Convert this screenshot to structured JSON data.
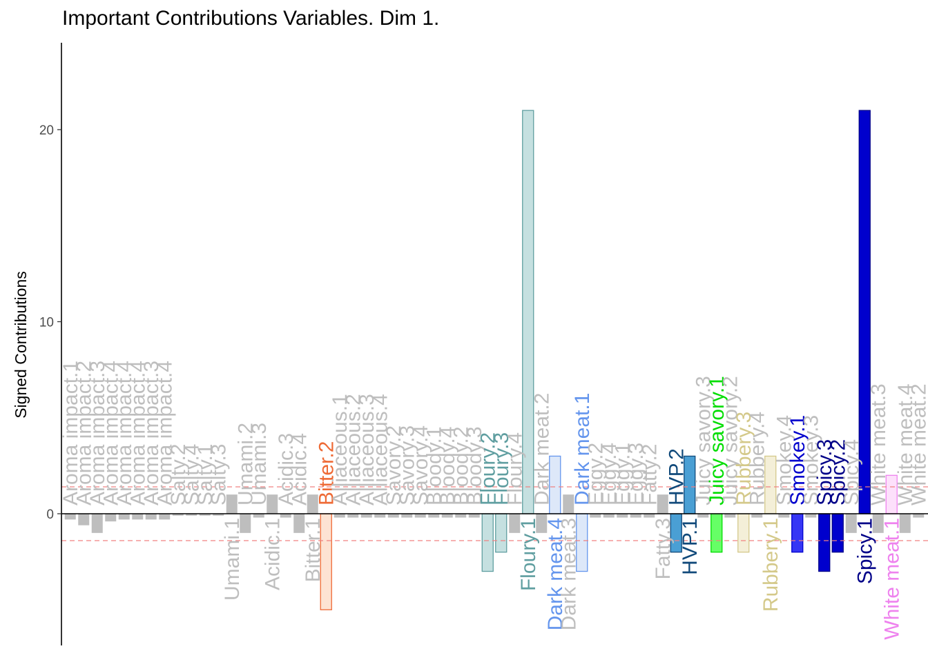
{
  "chart_data": {
    "type": "bar",
    "title": "Important Contributions Variables. Dim 1.",
    "xlabel": "",
    "ylabel": "Signed Contributions",
    "ylim": [
      -6.7,
      24.5
    ],
    "yticks": [
      0,
      10,
      20
    ],
    "threshold": 1.4,
    "grid": false,
    "legend": "none",
    "bars": [
      {
        "label": "Aroma impact.1",
        "value": -0.3,
        "color": "#bebebe",
        "border": "#bebebe",
        "text_color": "#bebebe",
        "important": false
      },
      {
        "label": "Aroma impact.2",
        "value": -0.6,
        "color": "#bebebe",
        "border": "#bebebe",
        "text_color": "#bebebe",
        "important": false
      },
      {
        "label": "Aroma impact.3",
        "value": -1.0,
        "color": "#bebebe",
        "border": "#bebebe",
        "text_color": "#bebebe",
        "important": false
      },
      {
        "label": "Aroma impact.4",
        "value": -0.4,
        "color": "#bebebe",
        "border": "#bebebe",
        "text_color": "#bebebe",
        "important": false
      },
      {
        "label": "Aroma impact.4",
        "value": -0.3,
        "color": "#bebebe",
        "border": "#bebebe",
        "text_color": "#bebebe",
        "important": false
      },
      {
        "label": "Aroma impact.4",
        "value": -0.3,
        "color": "#bebebe",
        "border": "#bebebe",
        "text_color": "#bebebe",
        "important": false
      },
      {
        "label": "Aroma impact.3",
        "value": -0.3,
        "color": "#bebebe",
        "border": "#bebebe",
        "text_color": "#bebebe",
        "important": false
      },
      {
        "label": "Aroma impact.4",
        "value": -0.3,
        "color": "#bebebe",
        "border": "#bebebe",
        "text_color": "#bebebe",
        "important": false
      },
      {
        "label": "Salty.2",
        "value": -0.1,
        "color": "#bebebe",
        "border": "#bebebe",
        "text_color": "#bebebe",
        "important": false
      },
      {
        "label": "Salty.4",
        "value": -0.1,
        "color": "#bebebe",
        "border": "#bebebe",
        "text_color": "#bebebe",
        "important": false
      },
      {
        "label": "Salty.1",
        "value": -0.1,
        "color": "#bebebe",
        "border": "#bebebe",
        "text_color": "#bebebe",
        "important": false
      },
      {
        "label": "Salty.3",
        "value": -0.1,
        "color": "#bebebe",
        "border": "#bebebe",
        "text_color": "#bebebe",
        "important": false
      },
      {
        "label": "Umami.1",
        "value": 1.0,
        "color": "#bebebe",
        "border": "#bebebe",
        "text_color": "#bebebe",
        "important": false
      },
      {
        "label": "Umami.2",
        "value": -1.0,
        "color": "#bebebe",
        "border": "#bebebe",
        "text_color": "#bebebe",
        "important": false
      },
      {
        "label": "Umami.3",
        "value": -0.2,
        "color": "#bebebe",
        "border": "#bebebe",
        "text_color": "#bebebe",
        "important": false
      },
      {
        "label": "Acidic.1",
        "value": 1.0,
        "color": "#bebebe",
        "border": "#bebebe",
        "text_color": "#bebebe",
        "important": false
      },
      {
        "label": "Acidic.3",
        "value": -0.2,
        "color": "#bebebe",
        "border": "#bebebe",
        "text_color": "#bebebe",
        "important": false
      },
      {
        "label": "Acidic.4",
        "value": -1.0,
        "color": "#bebebe",
        "border": "#bebebe",
        "text_color": "#bebebe",
        "important": false
      },
      {
        "label": "Bitter.1",
        "value": 1.0,
        "color": "#bebebe",
        "border": "#bebebe",
        "text_color": "#bebebe",
        "important": false
      },
      {
        "label": "Bitter.2",
        "value": -5.0,
        "color": "#fde3d3",
        "border": "#ee6a35",
        "text_color": "#ee6a35",
        "important": true
      },
      {
        "label": "Alliaceous.1",
        "value": -0.2,
        "color": "#bebebe",
        "border": "#bebebe",
        "text_color": "#bebebe",
        "important": false
      },
      {
        "label": "Alliaceous.2",
        "value": -0.2,
        "color": "#bebebe",
        "border": "#bebebe",
        "text_color": "#bebebe",
        "important": false
      },
      {
        "label": "Alliaceous.3",
        "value": -0.2,
        "color": "#bebebe",
        "border": "#bebebe",
        "text_color": "#bebebe",
        "important": false
      },
      {
        "label": "Alliaceous.4",
        "value": -0.2,
        "color": "#bebebe",
        "border": "#bebebe",
        "text_color": "#bebebe",
        "important": false
      },
      {
        "label": "Savory.2",
        "value": -0.2,
        "color": "#bebebe",
        "border": "#bebebe",
        "text_color": "#bebebe",
        "important": false
      },
      {
        "label": "Savory.3",
        "value": -0.2,
        "color": "#bebebe",
        "border": "#bebebe",
        "text_color": "#bebebe",
        "important": false
      },
      {
        "label": "Savory.4",
        "value": -0.2,
        "color": "#bebebe",
        "border": "#bebebe",
        "text_color": "#bebebe",
        "important": false
      },
      {
        "label": "Bloody.1",
        "value": -0.2,
        "color": "#bebebe",
        "border": "#bebebe",
        "text_color": "#bebebe",
        "important": false
      },
      {
        "label": "Bloody.4",
        "value": -0.2,
        "color": "#bebebe",
        "border": "#bebebe",
        "text_color": "#bebebe",
        "important": false
      },
      {
        "label": "Bloody.2",
        "value": -0.2,
        "color": "#bebebe",
        "border": "#bebebe",
        "text_color": "#bebebe",
        "important": false
      },
      {
        "label": "Bloody.3",
        "value": -0.2,
        "color": "#bebebe",
        "border": "#bebebe",
        "text_color": "#bebebe",
        "important": false
      },
      {
        "label": "Floury.2",
        "value": -3.0,
        "color": "#c5e0e0",
        "border": "#5f9ea0",
        "text_color": "#5f9ea0",
        "important": true
      },
      {
        "label": "Floury.3",
        "value": -2.0,
        "color": "#c5e0e0",
        "border": "#5f9ea0",
        "text_color": "#5f9ea0",
        "important": true
      },
      {
        "label": "Floury.4",
        "value": -1.0,
        "color": "#bebebe",
        "border": "#bebebe",
        "text_color": "#bebebe",
        "important": false
      },
      {
        "label": "Floury.1",
        "value": 21.0,
        "color": "#c5e0e0",
        "border": "#5f9ea0",
        "text_color": "#5f9ea0",
        "important": true
      },
      {
        "label": "Dark meat.2",
        "value": -1.0,
        "color": "#bebebe",
        "border": "#bebebe",
        "text_color": "#bebebe",
        "important": false
      },
      {
        "label": "Dark meat.4",
        "value": 3.0,
        "color": "#dde8f9",
        "border": "#6495ed",
        "text_color": "#6495ed",
        "important": true
      },
      {
        "label": "Dark meat.3",
        "value": 1.0,
        "color": "#bebebe",
        "border": "#bebebe",
        "text_color": "#bebebe",
        "important": false
      },
      {
        "label": "Dark meat.1",
        "value": -3.0,
        "color": "#dde8f9",
        "border": "#6495ed",
        "text_color": "#6495ed",
        "important": true
      },
      {
        "label": "Eggy.2",
        "value": -0.2,
        "color": "#bebebe",
        "border": "#bebebe",
        "text_color": "#bebebe",
        "important": false
      },
      {
        "label": "Eggy.4",
        "value": -0.2,
        "color": "#bebebe",
        "border": "#bebebe",
        "text_color": "#bebebe",
        "important": false
      },
      {
        "label": "Eggy.1",
        "value": -0.2,
        "color": "#bebebe",
        "border": "#bebebe",
        "text_color": "#bebebe",
        "important": false
      },
      {
        "label": "Eggy.3",
        "value": -0.2,
        "color": "#bebebe",
        "border": "#bebebe",
        "text_color": "#bebebe",
        "important": false
      },
      {
        "label": "Fatty.2",
        "value": -0.2,
        "color": "#bebebe",
        "border": "#bebebe",
        "text_color": "#bebebe",
        "important": false
      },
      {
        "label": "Fatty.3",
        "value": 1.0,
        "color": "#bebebe",
        "border": "#bebebe",
        "text_color": "#bebebe",
        "important": false
      },
      {
        "label": "HVP.2",
        "value": -2.0,
        "color": "#4a9fd4",
        "border": "#10497a",
        "text_color": "#10497a",
        "important": true
      },
      {
        "label": "HVP.1",
        "value": 3.0,
        "color": "#4a9fd4",
        "border": "#10497a",
        "text_color": "#10497a",
        "important": true
      },
      {
        "label": "Juicy savory.3",
        "value": -0.2,
        "color": "#bebebe",
        "border": "#bebebe",
        "text_color": "#bebebe",
        "important": false
      },
      {
        "label": "Juicy savory.1",
        "value": -2.0,
        "color": "#66ff66",
        "border": "#00dd00",
        "text_color": "#00dd00",
        "important": true
      },
      {
        "label": "Juicy savory.2",
        "value": -0.2,
        "color": "#bebebe",
        "border": "#bebebe",
        "text_color": "#bebebe",
        "important": false
      },
      {
        "label": "Rubbery.3",
        "value": -2.0,
        "color": "#f4efd8",
        "border": "#d4c98a",
        "text_color": "#d4c98a",
        "important": true
      },
      {
        "label": "Rubbery.4",
        "value": -0.2,
        "color": "#bebebe",
        "border": "#bebebe",
        "text_color": "#bebebe",
        "important": false
      },
      {
        "label": "Rubbery.1",
        "value": 3.0,
        "color": "#f4efd8",
        "border": "#d4c98a",
        "text_color": "#d4c98a",
        "important": true
      },
      {
        "label": "Smokey.4",
        "value": -0.2,
        "color": "#bebebe",
        "border": "#bebebe",
        "text_color": "#bebebe",
        "important": false
      },
      {
        "label": "Smokey.1",
        "value": -2.0,
        "color": "#3636f5",
        "border": "#0000cd",
        "text_color": "#0000cd",
        "important": true
      },
      {
        "label": "Smokey.3",
        "value": -0.2,
        "color": "#bebebe",
        "border": "#bebebe",
        "text_color": "#bebebe",
        "important": false
      },
      {
        "label": "Spicy.3",
        "value": -3.0,
        "color": "#0000cd",
        "border": "#000088",
        "text_color": "#000088",
        "important": true
      },
      {
        "label": "Spicy.2",
        "value": -2.0,
        "color": "#0000cd",
        "border": "#000088",
        "text_color": "#000088",
        "important": true
      },
      {
        "label": "Spicy.4",
        "value": -1.0,
        "color": "#bebebe",
        "border": "#bebebe",
        "text_color": "#bebebe",
        "important": false
      },
      {
        "label": "Spicy.1",
        "value": 21.0,
        "color": "#0000cd",
        "border": "#000088",
        "text_color": "#000088",
        "important": true
      },
      {
        "label": "White meat.3",
        "value": -1.0,
        "color": "#bebebe",
        "border": "#bebebe",
        "text_color": "#bebebe",
        "important": false
      },
      {
        "label": "White meat.1",
        "value": 2.0,
        "color": "#fde0fb",
        "border": "#ee82ee",
        "text_color": "#ee82ee",
        "important": true
      },
      {
        "label": "White meat.4",
        "value": -1.0,
        "color": "#bebebe",
        "border": "#bebebe",
        "text_color": "#bebebe",
        "important": false
      },
      {
        "label": "White meat.2",
        "value": -0.2,
        "color": "#bebebe",
        "border": "#bebebe",
        "text_color": "#bebebe",
        "important": false
      }
    ]
  }
}
